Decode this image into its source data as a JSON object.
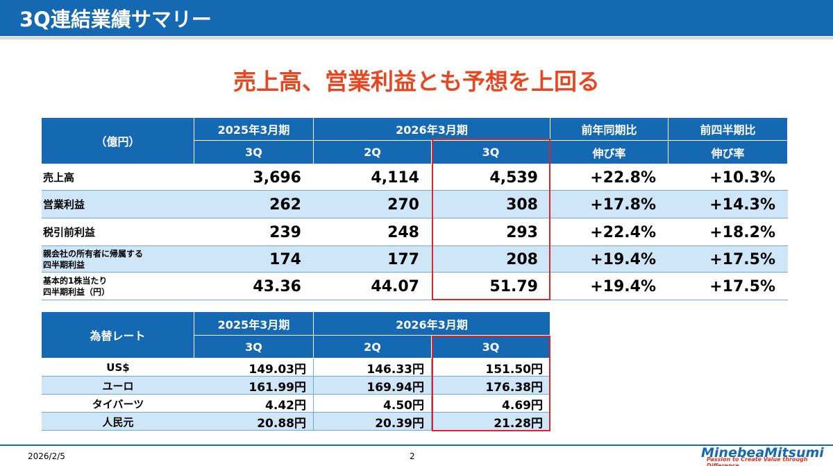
{
  "header": {
    "title": "3Q連結業績サマリー"
  },
  "headline": "売上高、営業利益とも予想を上回る",
  "results": {
    "unit": "（億円）",
    "periods": [
      "2025年3月期",
      "2026年3月期"
    ],
    "quarters": [
      "3Q",
      "2Q",
      "3Q"
    ],
    "comparisons": [
      [
        "前年同期比",
        "伸び率"
      ],
      [
        "前四半期比",
        "伸び率"
      ]
    ],
    "rows": [
      {
        "label": [
          "売上高"
        ],
        "values": [
          "3,696",
          "4,114",
          "4,539",
          "+22.8%",
          "+10.3%"
        ]
      },
      {
        "label": [
          "営業利益"
        ],
        "values": [
          "262",
          "270",
          "308",
          "+17.8%",
          "+14.3%"
        ]
      },
      {
        "label": [
          "税引前利益"
        ],
        "values": [
          "239",
          "248",
          "293",
          "+22.4%",
          "+18.2%"
        ]
      },
      {
        "label": [
          "親会社の所有者に帰属する",
          "四半期利益"
        ],
        "values": [
          "174",
          "177",
          "208",
          "+19.4%",
          "+17.5%"
        ]
      },
      {
        "label": [
          "基本的1株当たり",
          "四半期利益（円）"
        ],
        "values": [
          "43.36",
          "44.07",
          "51.79",
          "+19.4%",
          "+17.5%"
        ]
      }
    ]
  },
  "fx": {
    "title": "為替レート",
    "periods": [
      "2025年3月期",
      "2026年3月期"
    ],
    "quarters": [
      "3Q",
      "2Q",
      "3Q"
    ],
    "rows": [
      {
        "label": "US$",
        "values": [
          "149.03円",
          "146.33円",
          "151.50円"
        ]
      },
      {
        "label": "ユーロ",
        "values": [
          "161.99円",
          "169.94円",
          "176.38円"
        ]
      },
      {
        "label": "タイバーツ",
        "values": [
          "4.42円",
          "4.50円",
          "4.69円"
        ]
      },
      {
        "label": "人民元",
        "values": [
          "20.88円",
          "20.39円",
          "21.28円"
        ]
      }
    ]
  },
  "footer": {
    "date": "2026/2/5",
    "page": "2",
    "brand": "MinebeaMitsumi",
    "tagline": "Passion to Create Value through Difference"
  }
}
